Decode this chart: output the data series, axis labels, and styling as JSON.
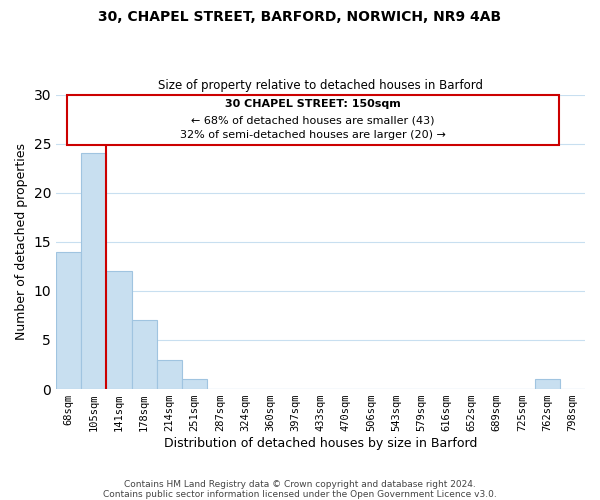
{
  "title": "30, CHAPEL STREET, BARFORD, NORWICH, NR9 4AB",
  "subtitle": "Size of property relative to detached houses in Barford",
  "xlabel": "Distribution of detached houses by size in Barford",
  "ylabel": "Number of detached properties",
  "bar_labels": [
    "68sqm",
    "105sqm",
    "141sqm",
    "178sqm",
    "214sqm",
    "251sqm",
    "287sqm",
    "324sqm",
    "360sqm",
    "397sqm",
    "433sqm",
    "470sqm",
    "506sqm",
    "543sqm",
    "579sqm",
    "616sqm",
    "652sqm",
    "689sqm",
    "725sqm",
    "762sqm",
    "798sqm"
  ],
  "bar_values": [
    14,
    24,
    12,
    7,
    3,
    1,
    0,
    0,
    0,
    0,
    0,
    0,
    0,
    0,
    0,
    0,
    0,
    0,
    0,
    1,
    0
  ],
  "bar_color": "#c8dff0",
  "bar_edge_color": "#a0c4e0",
  "annotation_text_line1": "30 CHAPEL STREET: 150sqm",
  "annotation_text_line2": "← 68% of detached houses are smaller (43)",
  "annotation_text_line3": "32% of semi-detached houses are larger (20) →",
  "annotation_box_color": "#ffffff",
  "annotation_box_edge": "#cc0000",
  "redline_color": "#cc0000",
  "footer_line1": "Contains HM Land Registry data © Crown copyright and database right 2024.",
  "footer_line2": "Contains public sector information licensed under the Open Government Licence v3.0.",
  "ylim": [
    0,
    30
  ],
  "background_color": "#ffffff",
  "grid_color": "#c8dff0",
  "yticks": [
    0,
    5,
    10,
    15,
    20,
    25,
    30
  ]
}
